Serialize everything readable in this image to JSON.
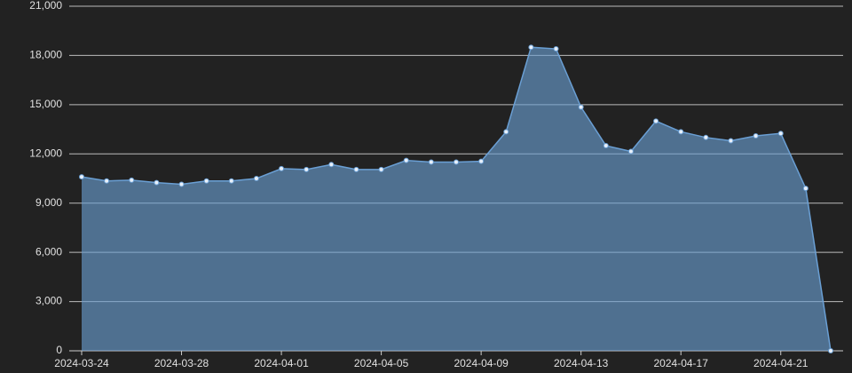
{
  "chart_data": {
    "type": "area",
    "categories": [
      "2024-03-24",
      null,
      null,
      null,
      "2024-03-28",
      null,
      null,
      null,
      "2024-04-01",
      null,
      null,
      null,
      "2024-04-05",
      null,
      null,
      null,
      "2024-04-09",
      null,
      null,
      null,
      "2024-04-13",
      null,
      null,
      null,
      "2024-04-17",
      null,
      null,
      null,
      "2024-04-21",
      null,
      null
    ],
    "values": [
      10600,
      10350,
      10400,
      10250,
      10150,
      10350,
      10350,
      10500,
      11100,
      11050,
      11350,
      11050,
      11050,
      11600,
      11500,
      11500,
      11550,
      13350,
      18500,
      18400,
      14850,
      12500,
      12150,
      14000,
      13350,
      13000,
      12800,
      13100,
      13250,
      9900,
      0
    ],
    "color": "#6a9fd4",
    "ylim": [
      0,
      21000
    ],
    "yticks": [
      0,
      {
        "value": 3000,
        "label": "3,000"
      },
      {
        "value": 6000,
        "label": "6,000"
      },
      {
        "value": 9000,
        "label": "9,000"
      },
      {
        "value": 12000,
        "label": "12,000"
      },
      {
        "value": 15000,
        "label": "15,000"
      },
      {
        "value": 18000,
        "label": "18,000"
      },
      {
        "value": 21000,
        "label": "21,000"
      }
    ],
    "grid": true
  }
}
